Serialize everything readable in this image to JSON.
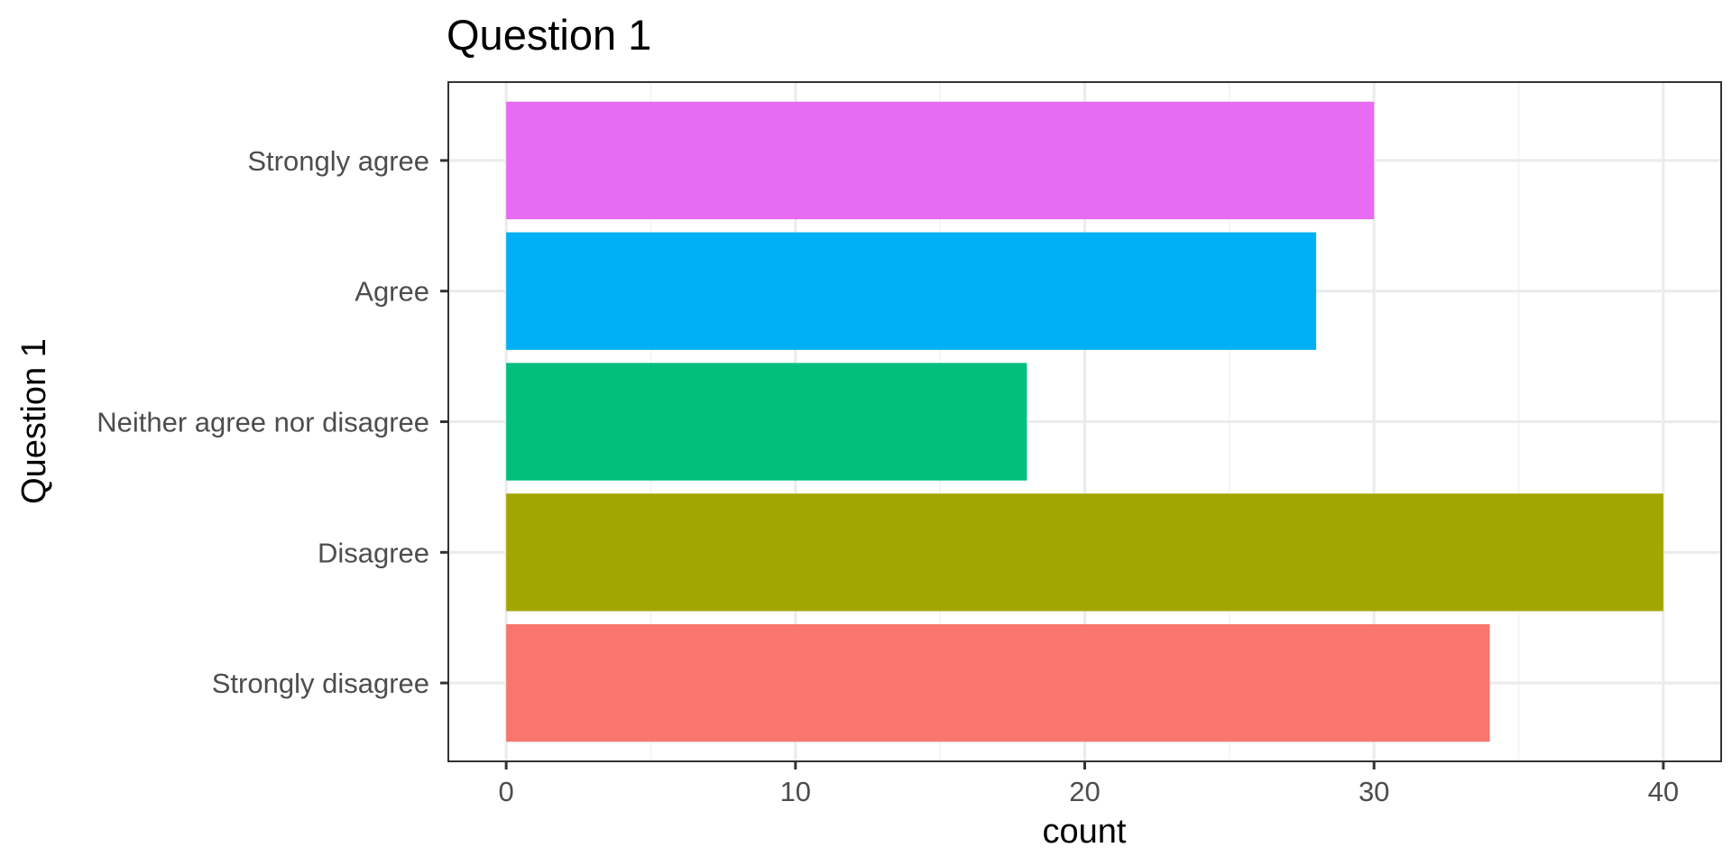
{
  "chart_data": {
    "type": "bar",
    "orientation": "horizontal",
    "title": "Question 1",
    "xlabel": "count",
    "ylabel": "Question 1",
    "categories": [
      "Strongly disagree",
      "Disagree",
      "Neither agree nor disagree",
      "Agree",
      "Strongly agree"
    ],
    "values": [
      34,
      40,
      18,
      28,
      30
    ],
    "colors": [
      "#F8766D",
      "#A3A500",
      "#00BF7D",
      "#00B0F6",
      "#E76BF3"
    ],
    "xlim": [
      -2,
      42
    ],
    "xticks": [
      0,
      10,
      20,
      30,
      40
    ],
    "xminor": [
      5,
      15,
      25,
      35
    ],
    "grid": true,
    "legend": "none"
  }
}
